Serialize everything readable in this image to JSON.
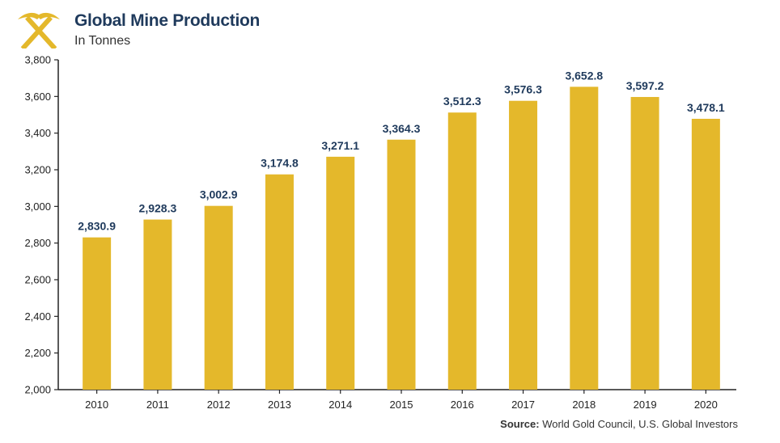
{
  "header": {
    "title": "Global Mine Production",
    "subtitle": "In Tonnes",
    "logo_icon": "crossed-pickaxes-icon"
  },
  "source": {
    "label": "Source:",
    "text": "World Gold Council, U.S. Global Investors"
  },
  "colors": {
    "bar": "#E4B82B",
    "title": "#1F3A5C",
    "axis": "#222222"
  },
  "chart_data": {
    "type": "bar",
    "title": "Global Mine Production",
    "subtitle": "In Tonnes",
    "xlabel": "",
    "ylabel": "",
    "categories": [
      "2010",
      "2011",
      "2012",
      "2013",
      "2014",
      "2015",
      "2016",
      "2017",
      "2018",
      "2019",
      "2020"
    ],
    "values": [
      2830.9,
      2928.3,
      3002.9,
      3174.8,
      3271.1,
      3364.3,
      3512.3,
      3576.3,
      3652.8,
      3597.2,
      3478.1
    ],
    "value_labels": [
      "2,830.9",
      "2,928.3",
      "3,002.9",
      "3,174.8",
      "3,271.1",
      "3,364.3",
      "3,512.3",
      "3,576.3",
      "3,652.8",
      "3,597.2",
      "3,478.1"
    ],
    "ylim": [
      2000,
      3800
    ],
    "yticks": [
      2000,
      2200,
      2400,
      2600,
      2800,
      3000,
      3200,
      3400,
      3600,
      3800
    ],
    "ytick_labels": [
      "2,000",
      "2,200",
      "2,400",
      "2,600",
      "2,800",
      "3,000",
      "3,200",
      "3,400",
      "3,600",
      "3,800"
    ],
    "grid": false,
    "legend": "none"
  }
}
